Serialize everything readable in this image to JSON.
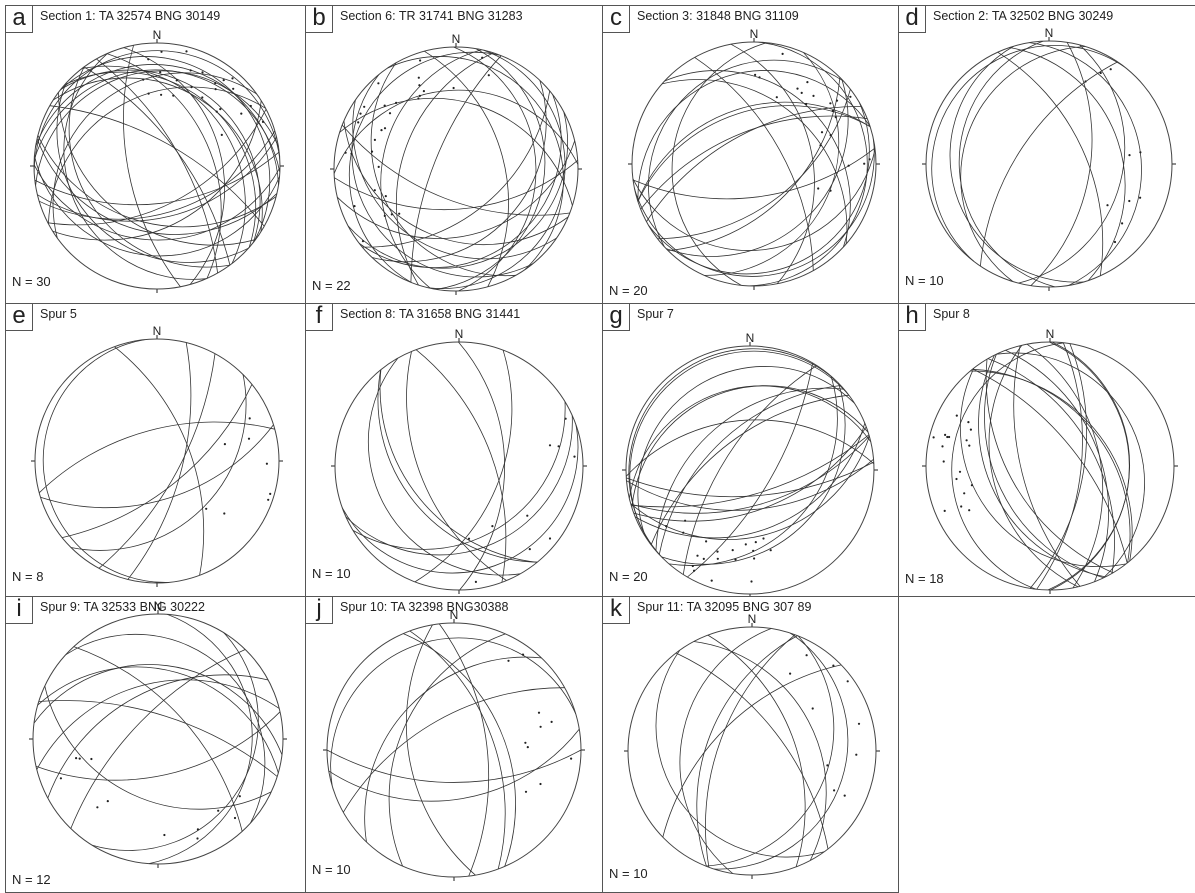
{
  "figure": {
    "north_label": "N",
    "panels": [
      {
        "letter": "a",
        "title": "Section 1: TA 32574 BNG 30149",
        "n_label": "N = 30",
        "n_planes": 30
      },
      {
        "letter": "b",
        "title": "Section 6: TR 31741 BNG 31283",
        "n_label": "N = 22",
        "n_planes": 22
      },
      {
        "letter": "c",
        "title": "Section 3: 31848 BNG 31109",
        "n_label": "N = 20",
        "n_planes": 20
      },
      {
        "letter": "d",
        "title": "Section 2: TA 32502 BNG 30249",
        "n_label": "N = 10",
        "n_planes": 10
      },
      {
        "letter": "e",
        "title": "Spur 5",
        "n_label": "N = 8",
        "n_planes": 8
      },
      {
        "letter": "f",
        "title": "Section 8: TA 31658 BNG 31441",
        "n_label": "N = 10",
        "n_planes": 10
      },
      {
        "letter": "g",
        "title": "Spur 7",
        "n_label": "N = 20",
        "n_planes": 20
      },
      {
        "letter": "h",
        "title": "Spur 8",
        "n_label": "N = 18",
        "n_planes": 18
      },
      {
        "letter": "i",
        "title": "Spur 9: TA 32533 BNG 30222",
        "n_label": "N = 12",
        "n_planes": 12
      },
      {
        "letter": "j",
        "title": "Spur 10: TA 32398  BNG30388",
        "n_label": "N = 10",
        "n_planes": 10
      },
      {
        "letter": "k",
        "title": "Spur 11: TA 32095 BNG 307 89",
        "n_label": "N = 10",
        "n_planes": 10
      }
    ]
  }
}
